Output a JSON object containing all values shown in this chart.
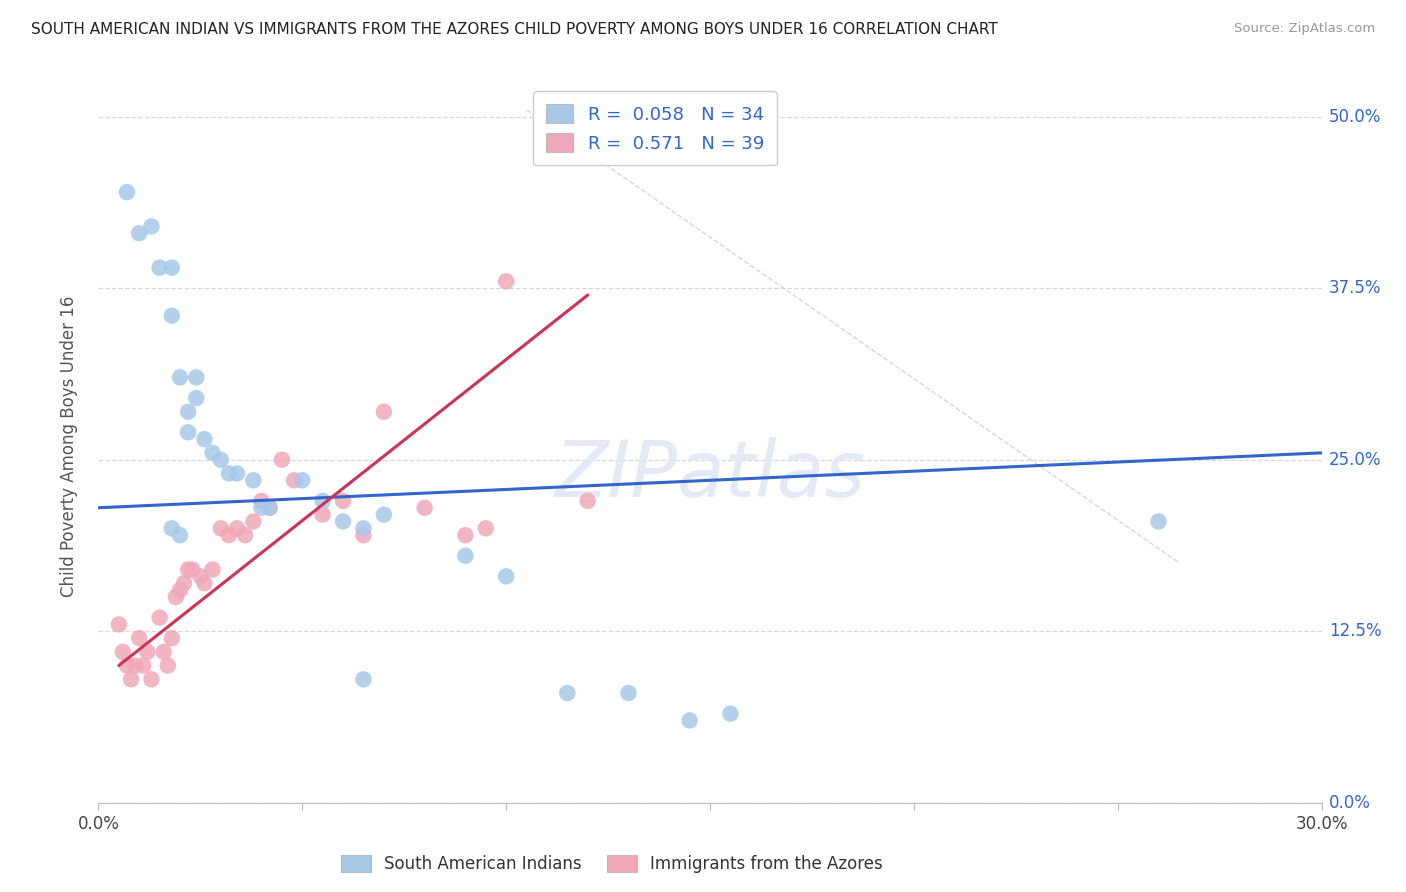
{
  "title": "SOUTH AMERICAN INDIAN VS IMMIGRANTS FROM THE AZORES CHILD POVERTY AMONG BOYS UNDER 16 CORRELATION CHART",
  "source": "Source: ZipAtlas.com",
  "ylabel": "Child Poverty Among Boys Under 16",
  "xlim": [
    0.0,
    0.3
  ],
  "ylim": [
    0.0,
    0.52
  ],
  "yticks": [
    0.0,
    0.125,
    0.25,
    0.375,
    0.5
  ],
  "ytick_labels": [
    "0.0%",
    "12.5%",
    "25.0%",
    "37.5%",
    "50.0%"
  ],
  "xtick_positions": [
    0.0,
    0.05,
    0.1,
    0.15,
    0.2,
    0.25,
    0.3
  ],
  "xtick_show": [
    "0.0%",
    "",
    "",
    "",
    "",
    "",
    "30.0%"
  ],
  "blue_face": "#a8c8e8",
  "pink_face": "#f0a8b8",
  "blue_line": "#3366cc",
  "pink_line": "#cc3355",
  "grid_color": "#d8d8d8",
  "diag_color": "#cccccc",
  "blue_R": 0.058,
  "blue_N": 34,
  "pink_R": 0.571,
  "pink_N": 39,
  "watermark": "ZIPatlas",
  "legend_label_blue": "South American Indians",
  "legend_label_pink": "Immigrants from the Azores",
  "blue_x": [
    0.007,
    0.01,
    0.013,
    0.015,
    0.018,
    0.018,
    0.02,
    0.022,
    0.022,
    0.024,
    0.024,
    0.026,
    0.028,
    0.03,
    0.032,
    0.034,
    0.038,
    0.04,
    0.042,
    0.05,
    0.055,
    0.06,
    0.065,
    0.07,
    0.09,
    0.1,
    0.115,
    0.13,
    0.145,
    0.155,
    0.018,
    0.02,
    0.26,
    0.065
  ],
  "blue_y": [
    0.445,
    0.415,
    0.42,
    0.39,
    0.39,
    0.355,
    0.31,
    0.285,
    0.27,
    0.31,
    0.295,
    0.265,
    0.255,
    0.25,
    0.24,
    0.24,
    0.235,
    0.215,
    0.215,
    0.235,
    0.22,
    0.205,
    0.2,
    0.21,
    0.18,
    0.165,
    0.08,
    0.08,
    0.06,
    0.065,
    0.2,
    0.195,
    0.205,
    0.09
  ],
  "pink_x": [
    0.005,
    0.006,
    0.007,
    0.008,
    0.009,
    0.01,
    0.011,
    0.012,
    0.013,
    0.015,
    0.016,
    0.017,
    0.018,
    0.019,
    0.02,
    0.021,
    0.022,
    0.023,
    0.025,
    0.026,
    0.028,
    0.03,
    0.032,
    0.034,
    0.036,
    0.038,
    0.04,
    0.042,
    0.045,
    0.048,
    0.055,
    0.06,
    0.065,
    0.07,
    0.08,
    0.09,
    0.095,
    0.1,
    0.12
  ],
  "pink_y": [
    0.13,
    0.11,
    0.1,
    0.09,
    0.1,
    0.12,
    0.1,
    0.11,
    0.09,
    0.135,
    0.11,
    0.1,
    0.12,
    0.15,
    0.155,
    0.16,
    0.17,
    0.17,
    0.165,
    0.16,
    0.17,
    0.2,
    0.195,
    0.2,
    0.195,
    0.205,
    0.22,
    0.215,
    0.25,
    0.235,
    0.21,
    0.22,
    0.195,
    0.285,
    0.215,
    0.195,
    0.2,
    0.38,
    0.22
  ],
  "blue_line_x": [
    0.0,
    0.3
  ],
  "blue_line_y": [
    0.215,
    0.255
  ],
  "pink_line_x": [
    0.005,
    0.12
  ],
  "pink_line_y": [
    0.1,
    0.37
  ],
  "diag_line_x": [
    0.105,
    0.265
  ],
  "diag_line_y": [
    0.505,
    0.175
  ]
}
